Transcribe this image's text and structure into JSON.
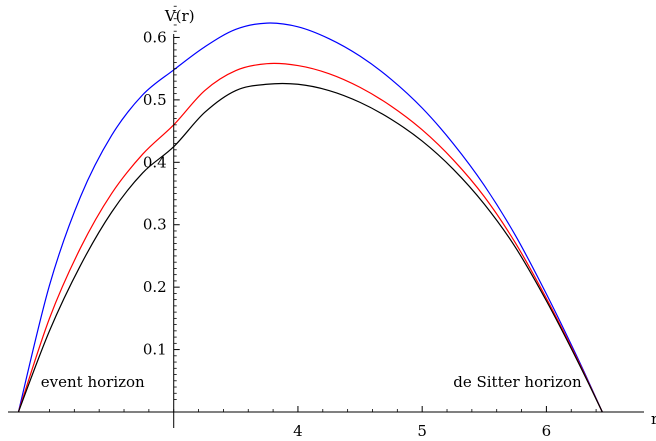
{
  "chart_data": {
    "type": "line",
    "xlabel": "r",
    "ylabel": "V(r)",
    "xlim": [
      1.65,
      6.85
    ],
    "ylim": [
      0,
      0.66
    ],
    "y_axis_at_x": 3.0,
    "x_ticks": [
      4,
      5,
      6
    ],
    "x_tick_labels": [
      "4",
      "5",
      "6"
    ],
    "y_ticks": [
      0.1,
      0.2,
      0.3,
      0.4,
      0.5,
      0.6
    ],
    "y_tick_labels": [
      "0.1",
      "0.2",
      "0.3",
      "0.4",
      "0.5",
      "0.6"
    ],
    "grid": false,
    "annotations": [
      {
        "text": "event horizon",
        "x": 1.93,
        "y": 0.04
      },
      {
        "text": "de Sitter horizon",
        "x": 5.25,
        "y": 0.04
      }
    ],
    "series": [
      {
        "color": "#0000ff",
        "x": [
          1.75,
          2.0,
          2.25,
          2.5,
          2.75,
          3.0,
          3.25,
          3.5,
          3.75,
          4.0,
          4.25,
          4.5,
          4.75,
          5.0,
          5.25,
          5.5,
          5.75,
          6.0,
          6.25,
          6.45
        ],
        "y": [
          0.0,
          0.203,
          0.345,
          0.443,
          0.508,
          0.548,
          0.585,
          0.613,
          0.623,
          0.617,
          0.598,
          0.57,
          0.533,
          0.487,
          0.43,
          0.363,
          0.283,
          0.189,
          0.087,
          0.0
        ]
      },
      {
        "color": "#ff0000",
        "x": [
          1.75,
          2.0,
          2.25,
          2.5,
          2.75,
          3.0,
          3.25,
          3.5,
          3.75,
          4.0,
          4.25,
          4.5,
          4.75,
          5.0,
          5.25,
          5.5,
          5.75,
          6.0,
          6.25,
          6.45
        ],
        "y": [
          0.0,
          0.15,
          0.263,
          0.35,
          0.413,
          0.46,
          0.515,
          0.547,
          0.558,
          0.555,
          0.542,
          0.52,
          0.49,
          0.452,
          0.404,
          0.345,
          0.271,
          0.182,
          0.084,
          0.0
        ]
      },
      {
        "color": "#000000",
        "x": [
          1.75,
          2.0,
          2.25,
          2.5,
          2.75,
          3.0,
          3.25,
          3.5,
          3.75,
          4.0,
          4.25,
          4.5,
          4.75,
          5.0,
          5.25,
          5.5,
          5.75,
          6.0,
          6.25,
          6.45
        ],
        "y": [
          0.0,
          0.13,
          0.235,
          0.32,
          0.383,
          0.425,
          0.48,
          0.515,
          0.525,
          0.525,
          0.515,
          0.496,
          0.469,
          0.434,
          0.389,
          0.333,
          0.264,
          0.178,
          0.082,
          0.0
        ]
      }
    ]
  }
}
